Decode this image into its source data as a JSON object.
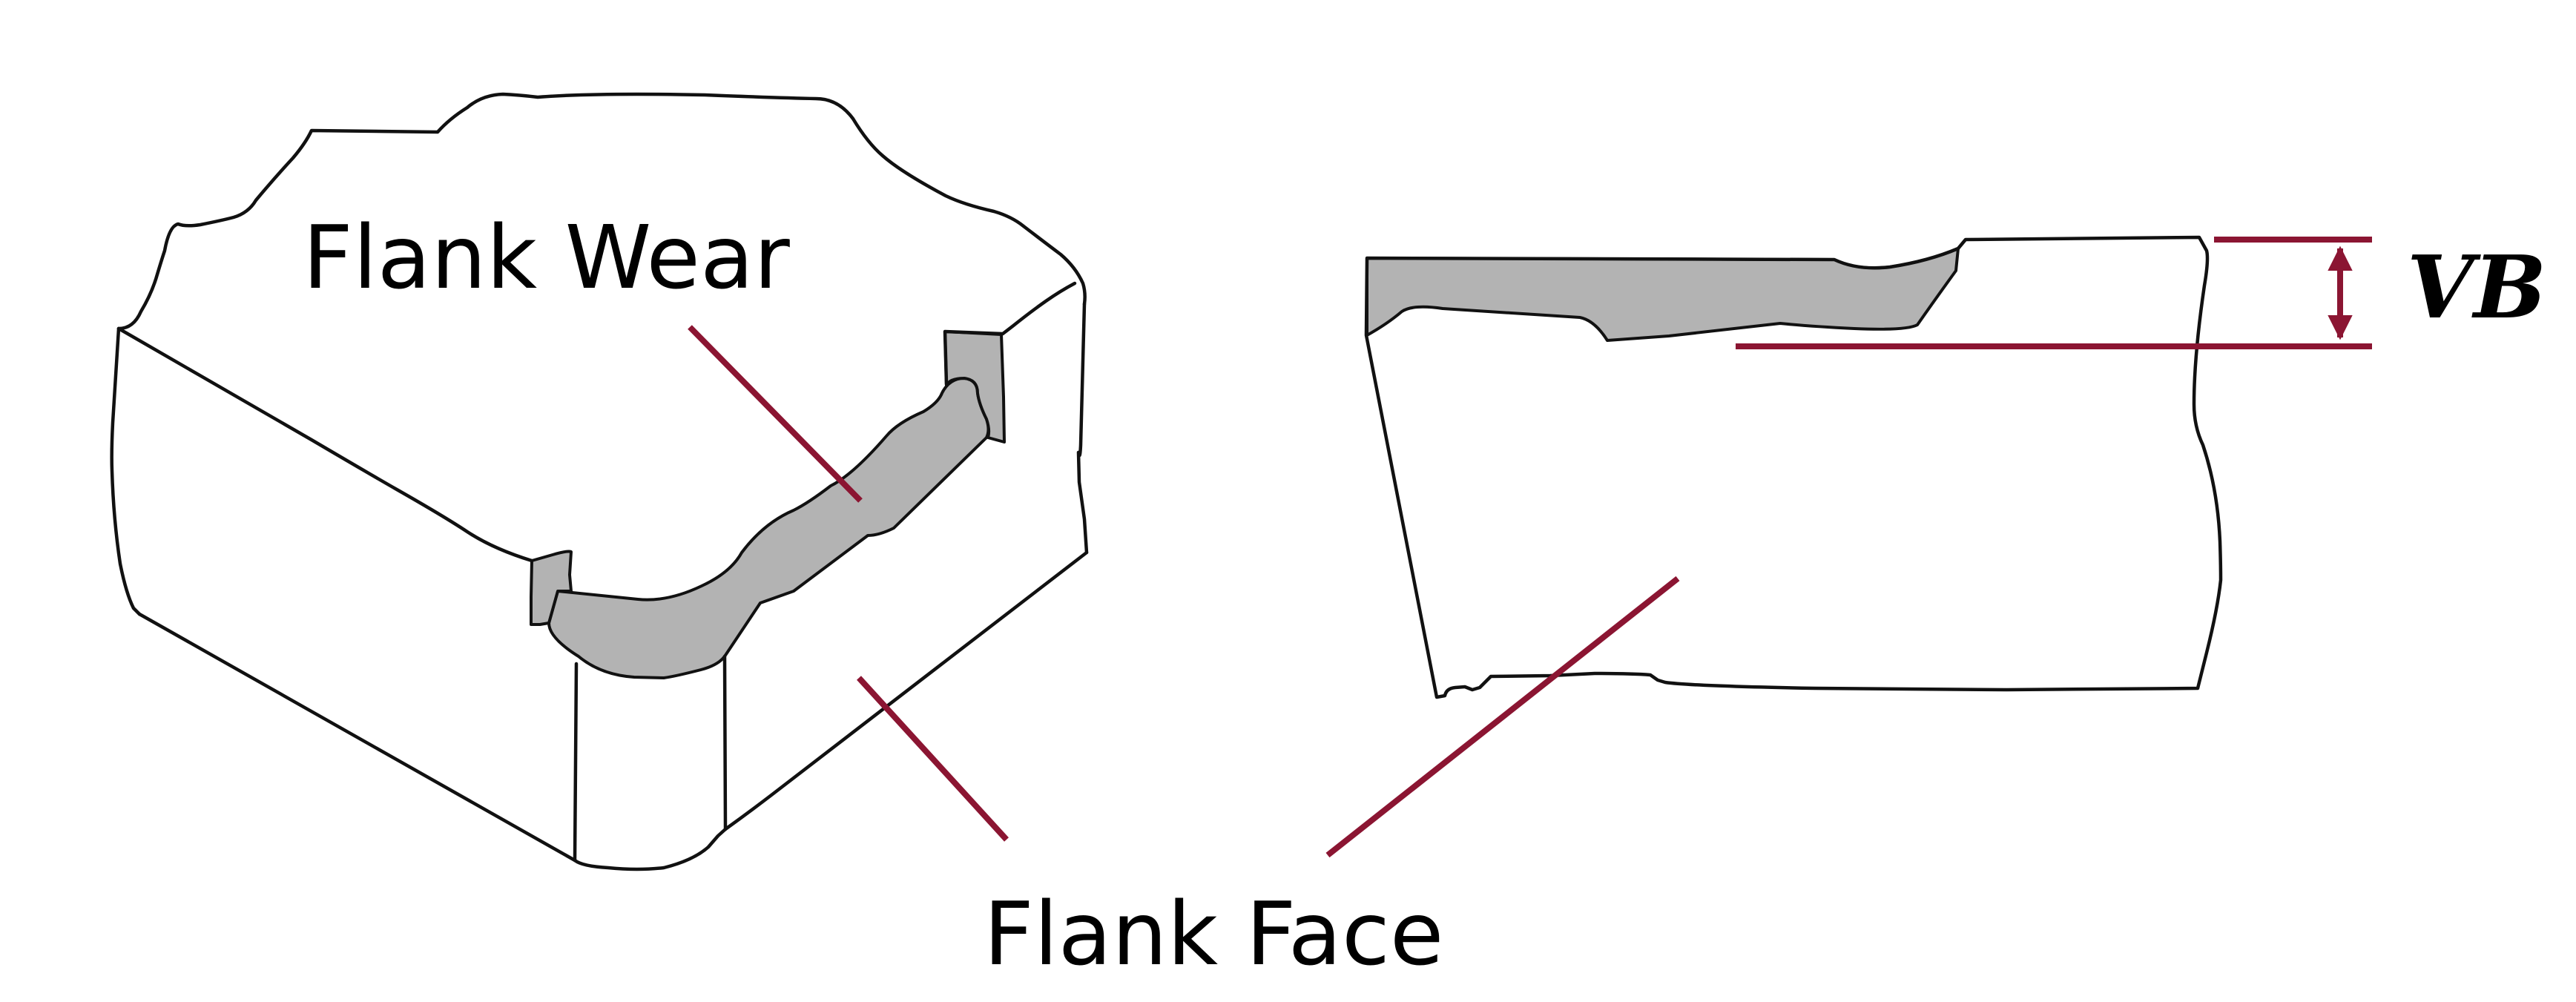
{
  "labels": {
    "flank_wear": "Flank Wear",
    "flank_face": "Flank Face",
    "vb": "VB"
  },
  "colors": {
    "leader": "#8b1532",
    "wear_fill": "#b3b3b3",
    "outline": "#111111",
    "background": "#ffffff"
  }
}
